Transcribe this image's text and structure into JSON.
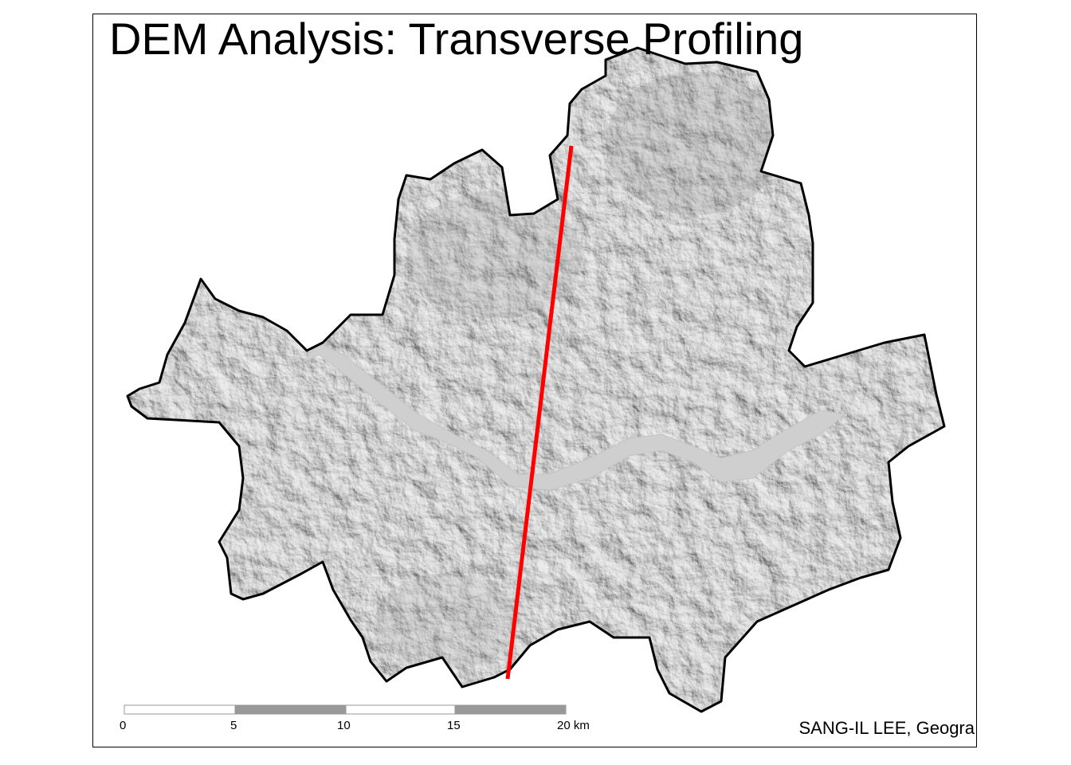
{
  "title": "DEM Analysis: Transverse Profiling",
  "credit": "SANG-IL LEE, Geogra",
  "scale_bar": {
    "labels": [
      "0",
      "5",
      "10",
      "15",
      "20 km"
    ],
    "colors": [
      "#ffffff",
      "#999999",
      "#ffffff",
      "#999999"
    ]
  },
  "colors": {
    "boundary": "#000000",
    "hillshade": "#d6d6d6",
    "river": "#cfcfcf",
    "profile_line": "#ff0000"
  }
}
